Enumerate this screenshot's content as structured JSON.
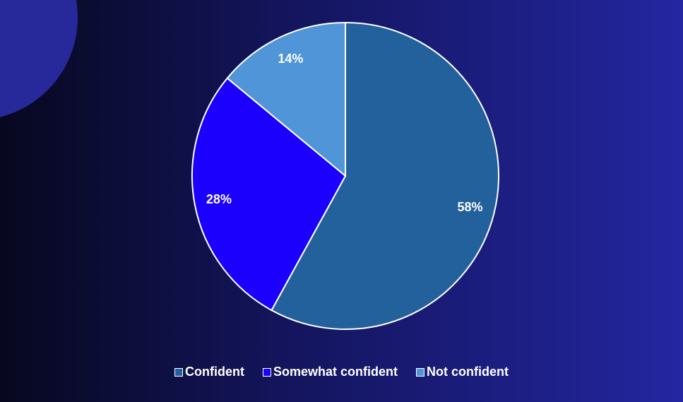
{
  "chart_data": {
    "type": "pie",
    "categories": [
      "Confident",
      "Somewhat confident",
      "Not confident"
    ],
    "values": [
      58,
      28,
      14
    ],
    "value_labels": [
      "58%",
      "28%",
      "14%"
    ],
    "colors": [
      "#22619b",
      "#1a00fc",
      "#4f95d8"
    ],
    "legend": "bottom"
  }
}
